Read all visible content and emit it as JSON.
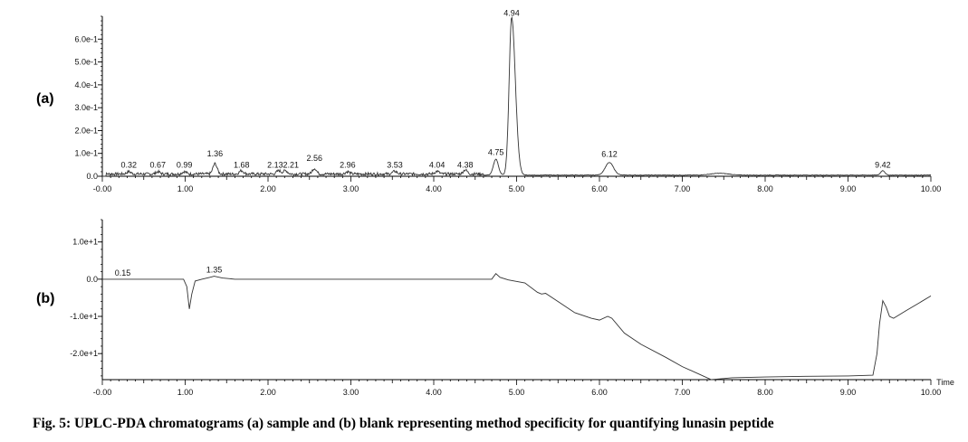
{
  "caption": "Fig. 5: UPLC-PDA chromatograms (a) sample and (b) blank representing method specificity for quantifying lunasin peptide",
  "chart_data": [
    {
      "type": "line",
      "panel": "(a)",
      "xlim": [
        0,
        10
      ],
      "ylim": [
        0,
        0.7
      ],
      "x_ticks": [
        0,
        1,
        2,
        3,
        4,
        5,
        6,
        7,
        8,
        9,
        10
      ],
      "x_tick_labels": [
        "-0.00",
        "1.00",
        "2.00",
        "3.00",
        "4.00",
        "5.00",
        "6.00",
        "7.00",
        "8.00",
        "9.00",
        "10.00"
      ],
      "y_ticks": [
        0,
        0.1,
        0.2,
        0.3,
        0.4,
        0.5,
        0.6
      ],
      "y_tick_labels": [
        "0.0",
        "1.0e-1",
        "2.0e-1",
        "3.0e-1",
        "4.0e-1",
        "5.0e-1",
        "6.0e-1"
      ],
      "xlabel": "",
      "ylabel": "",
      "peaks": [
        {
          "rt": 0.32,
          "label": "0.32",
          "height": 0.01
        },
        {
          "rt": 0.67,
          "label": "0.67",
          "height": 0.01
        },
        {
          "rt": 0.99,
          "label": "0.99",
          "height": 0.01
        },
        {
          "rt": 1.36,
          "label": "1.36",
          "height": 0.045
        },
        {
          "rt": 1.68,
          "label": "1.68",
          "height": 0.015
        },
        {
          "rt": 2.13,
          "label": "2.13",
          "height": 0.015
        },
        {
          "rt": 2.21,
          "label": "2.21",
          "height": 0.015
        },
        {
          "rt": 2.56,
          "label": "2.56",
          "height": 0.025
        },
        {
          "rt": 2.96,
          "label": "2.96",
          "height": 0.01
        },
        {
          "rt": 3.53,
          "label": "3.53",
          "height": 0.012
        },
        {
          "rt": 4.04,
          "label": "4.04",
          "height": 0.012
        },
        {
          "rt": 4.38,
          "label": "4.38",
          "height": 0.018
        },
        {
          "rt": 4.75,
          "label": "4.75",
          "height": 0.07
        },
        {
          "rt": 4.94,
          "label": "4.94",
          "height": 0.69
        },
        {
          "rt": 6.12,
          "label": "6.12",
          "height": 0.055
        },
        {
          "rt": 9.42,
          "label": "9.42",
          "height": 0.02
        }
      ]
    },
    {
      "type": "line",
      "panel": "(b)",
      "xlim": [
        0,
        10
      ],
      "ylim": [
        -2.7,
        1.6
      ],
      "x_ticks": [
        0,
        1,
        2,
        3,
        4,
        5,
        6,
        7,
        8,
        9,
        10
      ],
      "x_tick_labels": [
        "-0.00",
        "1.00",
        "2.00",
        "3.00",
        "4.00",
        "5.00",
        "6.00",
        "7.00",
        "8.00",
        "9.00",
        "10.00"
      ],
      "y_ticks": [
        1,
        0,
        -1,
        -2
      ],
      "y_tick_labels": [
        "1.0e+1",
        "0.0",
        "-1.0e+1",
        "-2.0e+1"
      ],
      "xlabel": "Time",
      "ylabel": "",
      "peak_labels": [
        {
          "rt": 0.15,
          "label": "0.15",
          "y": 0.0
        },
        {
          "rt": 1.35,
          "label": "1.35",
          "y": 0.08
        }
      ],
      "x": [
        0.0,
        0.5,
        0.98,
        1.02,
        1.05,
        1.08,
        1.12,
        1.2,
        1.3,
        1.35,
        1.45,
        1.6,
        2.0,
        3.0,
        4.0,
        4.5,
        4.7,
        4.75,
        4.8,
        4.9,
        5.1,
        5.25,
        5.3,
        5.35,
        5.5,
        5.7,
        5.9,
        6.0,
        6.1,
        6.15,
        6.3,
        6.5,
        6.8,
        7.0,
        7.2,
        7.35,
        7.45,
        7.6,
        8.0,
        8.5,
        9.0,
        9.3,
        9.35,
        9.38,
        9.42,
        9.46,
        9.5,
        9.55,
        9.7,
        9.85,
        10.0
      ],
      "values": [
        0.0,
        0.0,
        0.0,
        -0.2,
        -0.8,
        -0.4,
        -0.05,
        0.0,
        0.05,
        0.08,
        0.03,
        0.0,
        0.0,
        0.0,
        0.0,
        0.0,
        0.0,
        0.15,
        0.05,
        -0.02,
        -0.1,
        -0.35,
        -0.4,
        -0.38,
        -0.6,
        -0.9,
        -1.05,
        -1.1,
        -1.0,
        -1.05,
        -1.45,
        -1.75,
        -2.1,
        -2.35,
        -2.55,
        -2.7,
        -2.68,
        -2.65,
        -2.63,
        -2.61,
        -2.6,
        -2.58,
        -2.0,
        -1.2,
        -0.58,
        -0.75,
        -1.0,
        -1.05,
        -0.85,
        -0.65,
        -0.45
      ]
    }
  ]
}
